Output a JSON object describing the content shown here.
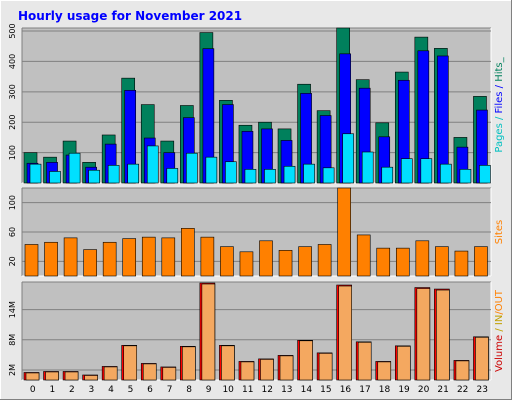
{
  "title": "Hourly usage for November 2021",
  "colors": {
    "hits": "#00805c",
    "files": "#0000ff",
    "pages": "#00e0ff",
    "sites": "#ff8000",
    "volume": "#ff0000",
    "in_out_in": "#ff8000",
    "in_out_out": "#ffc000",
    "plot_bg": "#c0c0c0",
    "background": "#e8e8e8"
  },
  "panels": {
    "top": {
      "legend": [
        {
          "text": "Pages",
          "color": "#00c0c0"
        },
        {
          "text": " / ",
          "color": "#00c0c0"
        },
        {
          "text": "Files",
          "color": "#0000ff"
        },
        {
          "text": " / ",
          "color": "#0000ff"
        },
        {
          "text": "Hits",
          "color": "#00805c"
        },
        {
          "text": "_",
          "color": "#00805c"
        }
      ]
    },
    "mid": {
      "legend": [
        {
          "text": "Sites",
          "color": "#ff8000"
        }
      ]
    },
    "bottom": {
      "legend": [
        {
          "text": "Volume",
          "color": "#cc0000"
        },
        {
          "text": " / ",
          "color": "#c0a000"
        },
        {
          "text": "IN",
          "color": "#c0a000"
        },
        {
          "text": "/OUT",
          "color": "#ff8000"
        }
      ]
    }
  },
  "chart_data": [
    {
      "type": "bar",
      "panel": "top",
      "xlabel": "",
      "ylabel": "",
      "categories": [
        "0",
        "1",
        "2",
        "3",
        "4",
        "5",
        "6",
        "7",
        "8",
        "9",
        "10",
        "11",
        "12",
        "13",
        "14",
        "15",
        "16",
        "17",
        "18",
        "19",
        "20",
        "21",
        "22",
        "23"
      ],
      "ylim": [
        0,
        510
      ],
      "yticks": [
        "100",
        "200",
        "300",
        "400",
        "500"
      ],
      "grid": true,
      "series": [
        {
          "name": "Hits",
          "values": [
            100,
            85,
            138,
            68,
            158,
            345,
            258,
            138,
            255,
            495,
            272,
            190,
            200,
            178,
            325,
            238,
            510,
            340,
            198,
            365,
            480,
            443,
            150,
            285
          ]
        },
        {
          "name": "Files",
          "values": [
            65,
            68,
            92,
            52,
            128,
            305,
            148,
            100,
            215,
            442,
            258,
            170,
            178,
            140,
            295,
            222,
            425,
            312,
            152,
            338,
            435,
            418,
            118,
            240
          ]
        },
        {
          "name": "Pages",
          "values": [
            62,
            38,
            98,
            42,
            58,
            62,
            122,
            48,
            98,
            85,
            70,
            45,
            45,
            55,
            62,
            50,
            162,
            102,
            52,
            80,
            80,
            62,
            45,
            58
          ]
        }
      ]
    },
    {
      "type": "bar",
      "panel": "mid",
      "categories": [
        "0",
        "1",
        "2",
        "3",
        "4",
        "5",
        "6",
        "7",
        "8",
        "9",
        "10",
        "11",
        "12",
        "13",
        "14",
        "15",
        "16",
        "17",
        "18",
        "19",
        "20",
        "21",
        "22",
        "23"
      ],
      "ylim": [
        0,
        120
      ],
      "yticks": [
        "20",
        "60",
        "100"
      ],
      "grid": true,
      "series": [
        {
          "name": "Sites",
          "values": [
            43,
            46,
            52,
            36,
            46,
            51,
            53,
            52,
            65,
            53,
            40,
            33,
            48,
            35,
            40,
            43,
            120,
            56,
            38,
            38,
            48,
            40,
            34,
            40
          ]
        }
      ]
    },
    {
      "type": "bar",
      "panel": "bottom",
      "categories": [
        "0",
        "1",
        "2",
        "3",
        "4",
        "5",
        "6",
        "7",
        "8",
        "9",
        "10",
        "11",
        "12",
        "13",
        "14",
        "15",
        "16",
        "17",
        "18",
        "19",
        "20",
        "21",
        "22",
        "23"
      ],
      "ylim": [
        0,
        19.5
      ],
      "yticks": [
        "2M",
        "8M",
        "14M"
      ],
      "grid": true,
      "series": [
        {
          "name": "Volume",
          "values": [
            1.5,
            1.7,
            1.7,
            1.0,
            2.7,
            6.9,
            3.3,
            2.6,
            6.7,
            19.3,
            6.9,
            3.7,
            4.2,
            4.9,
            7.9,
            5.4,
            18.9,
            7.6,
            3.7,
            6.8,
            18.4,
            18.1,
            3.9,
            8.6
          ]
        },
        {
          "name": "IN",
          "values": [
            1.4,
            1.6,
            1.6,
            0.9,
            2.6,
            6.8,
            3.2,
            2.5,
            6.6,
            19.1,
            6.8,
            3.6,
            4.1,
            4.8,
            7.8,
            5.3,
            18.7,
            7.5,
            3.6,
            6.7,
            18.2,
            17.9,
            3.8,
            8.5
          ]
        }
      ]
    }
  ]
}
